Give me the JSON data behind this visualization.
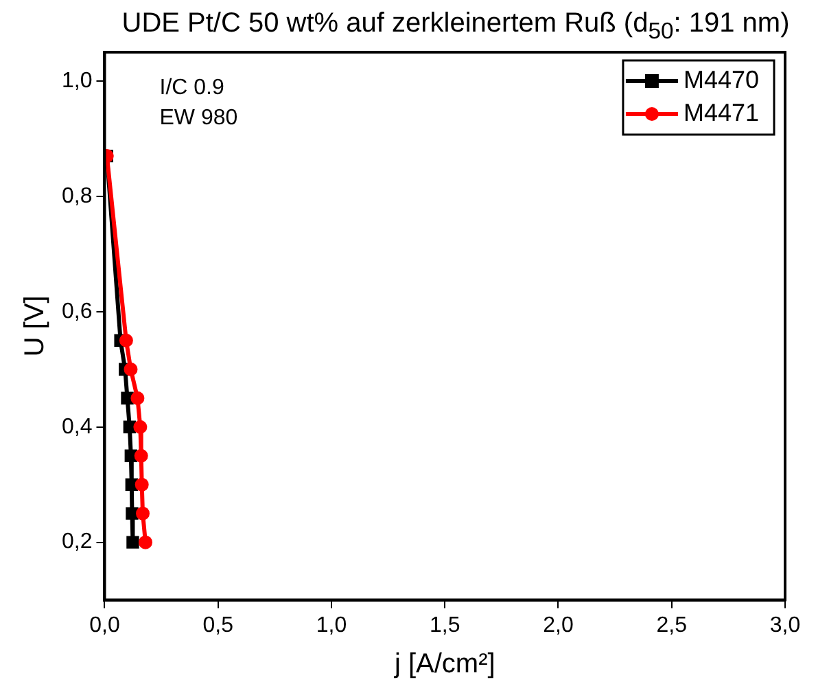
{
  "chart_data": {
    "type": "line",
    "title": "UDE Pt/C 50 wt% auf zerkleinertem Ruß (d$_{50}$: 191 nm)",
    "xlabel": "j [A/cm²]",
    "ylabel": "U [V]",
    "annotations": [
      "I/C 0.9",
      "EW 980"
    ],
    "series": [
      {
        "name": "M4470",
        "color": "#000000",
        "marker": "square",
        "x": [
          0.01,
          0.07,
          0.09,
          0.1,
          0.11,
          0.116,
          0.119,
          0.121,
          0.124
        ],
        "values": [
          0.87,
          0.55,
          0.5,
          0.45,
          0.4,
          0.35,
          0.3,
          0.25,
          0.2
        ]
      },
      {
        "name": "M4471",
        "color": "#ff0000",
        "marker": "circle",
        "x": [
          0.01,
          0.095,
          0.115,
          0.145,
          0.157,
          0.161,
          0.164,
          0.168,
          0.18
        ],
        "values": [
          0.87,
          0.55,
          0.5,
          0.45,
          0.4,
          0.35,
          0.3,
          0.25,
          0.2
        ]
      }
    ],
    "xlim": [
      0,
      3
    ],
    "xticks": [
      {
        "value": 0,
        "label": "0,0"
      },
      {
        "value": 0.5,
        "label": "0,5"
      },
      {
        "value": 1,
        "label": "1,0"
      },
      {
        "value": 1.5,
        "label": "1,5"
      },
      {
        "value": 2,
        "label": "2,0"
      },
      {
        "value": 2.5,
        "label": "2,5"
      },
      {
        "value": 3,
        "label": "3,0"
      }
    ],
    "ylim": [
      0.1,
      1.05
    ],
    "yticks": [
      {
        "value": 0.2,
        "label": "0,2"
      },
      {
        "value": 0.4,
        "label": "0,4"
      },
      {
        "value": 0.6,
        "label": "0,6"
      },
      {
        "value": 0.8,
        "label": "0,8"
      },
      {
        "value": 1,
        "label": "1,0"
      }
    ],
    "grid": false,
    "legend": "top right",
    "line_style": "solid"
  }
}
